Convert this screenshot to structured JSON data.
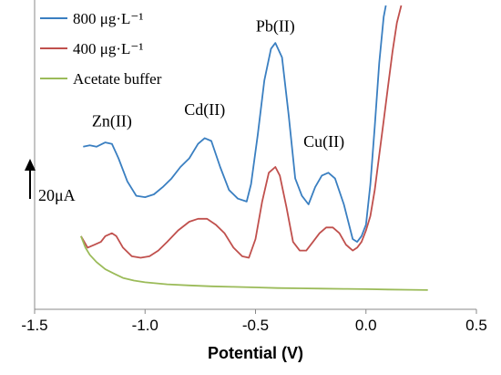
{
  "chart_data": {
    "type": "line",
    "title": "",
    "xlabel": "Potential (V)",
    "ylabel": "",
    "xlim": [
      -1.5,
      0.5
    ],
    "ylim": [
      0,
      100
    ],
    "x_ticks": [
      "-1.5",
      "-1.0",
      "-0.5",
      "0.0",
      "0.5"
    ],
    "grid": false,
    "legend_position": "top-left",
    "scale_bar_label": "20μA",
    "annotations": [
      {
        "text": "Zn(II)",
        "x": -1.15,
        "y": 58
      },
      {
        "text": "Cd(II)",
        "x": -0.73,
        "y": 62
      },
      {
        "text": "Pb(II)",
        "x": -0.41,
        "y": 91
      },
      {
        "text": "Cu(II)",
        "x": -0.19,
        "y": 51
      }
    ],
    "series": [
      {
        "name": "800 μg·L⁻¹",
        "color": "#3a7fc1",
        "x": [
          -1.28,
          -1.25,
          -1.22,
          -1.18,
          -1.15,
          -1.12,
          -1.08,
          -1.04,
          -1.0,
          -0.96,
          -0.92,
          -0.88,
          -0.84,
          -0.8,
          -0.76,
          -0.73,
          -0.7,
          -0.66,
          -0.62,
          -0.58,
          -0.54,
          -0.52,
          -0.49,
          -0.46,
          -0.43,
          -0.41,
          -0.38,
          -0.35,
          -0.32,
          -0.29,
          -0.26,
          -0.23,
          -0.2,
          -0.17,
          -0.14,
          -0.1,
          -0.06,
          -0.04,
          -0.02,
          0.0,
          0.02,
          0.04,
          0.06,
          0.08,
          0.09
        ],
        "y": [
          51,
          51.5,
          51,
          52.5,
          52,
          47,
          39,
          34,
          33.5,
          34.5,
          37,
          40,
          44,
          47,
          52,
          54,
          53,
          44,
          36,
          33,
          32,
          38,
          55,
          74,
          85,
          87,
          82,
          62,
          40,
          34,
          31,
          37,
          41,
          42,
          40,
          31,
          19,
          18,
          20,
          24,
          38,
          58,
          80,
          96,
          100
        ]
      },
      {
        "name": "400 μg·L⁻¹",
        "color": "#c0504d",
        "x": [
          -1.29,
          -1.26,
          -1.23,
          -1.2,
          -1.18,
          -1.15,
          -1.13,
          -1.1,
          -1.06,
          -1.02,
          -0.98,
          -0.94,
          -0.9,
          -0.85,
          -0.8,
          -0.76,
          -0.72,
          -0.68,
          -0.64,
          -0.6,
          -0.56,
          -0.53,
          -0.5,
          -0.47,
          -0.44,
          -0.41,
          -0.39,
          -0.36,
          -0.33,
          -0.3,
          -0.27,
          -0.24,
          -0.21,
          -0.18,
          -0.15,
          -0.12,
          -0.09,
          -0.06,
          -0.04,
          -0.02,
          0.0,
          0.02,
          0.04,
          0.06,
          0.08,
          0.1,
          0.12,
          0.14,
          0.16
        ],
        "y": [
          20,
          16,
          17,
          18,
          20,
          21,
          20,
          16,
          13,
          12.5,
          13,
          15,
          18,
          22,
          25,
          26,
          26,
          24,
          21,
          16,
          13,
          12.5,
          19,
          32,
          42,
          44,
          41,
          30,
          18,
          15,
          15,
          18,
          21,
          23,
          23,
          21,
          17,
          15,
          16,
          18,
          22,
          27,
          36,
          48,
          60,
          72,
          84,
          94,
          100
        ]
      },
      {
        "name": "Acetate buffer",
        "color": "#9bbb59",
        "x": [
          -1.29,
          -1.27,
          -1.25,
          -1.22,
          -1.18,
          -1.14,
          -1.1,
          -1.05,
          -1.0,
          -0.9,
          -0.8,
          -0.7,
          -0.6,
          -0.5,
          -0.4,
          -0.3,
          -0.2,
          -0.1,
          0.0,
          0.1,
          0.2,
          0.28
        ],
        "y": [
          20,
          16,
          13.5,
          11,
          8.5,
          7,
          5.5,
          4.6,
          4,
          3.3,
          2.9,
          2.6,
          2.4,
          2.2,
          2.0,
          1.9,
          1.8,
          1.7,
          1.6,
          1.5,
          1.4,
          1.3
        ]
      }
    ]
  }
}
